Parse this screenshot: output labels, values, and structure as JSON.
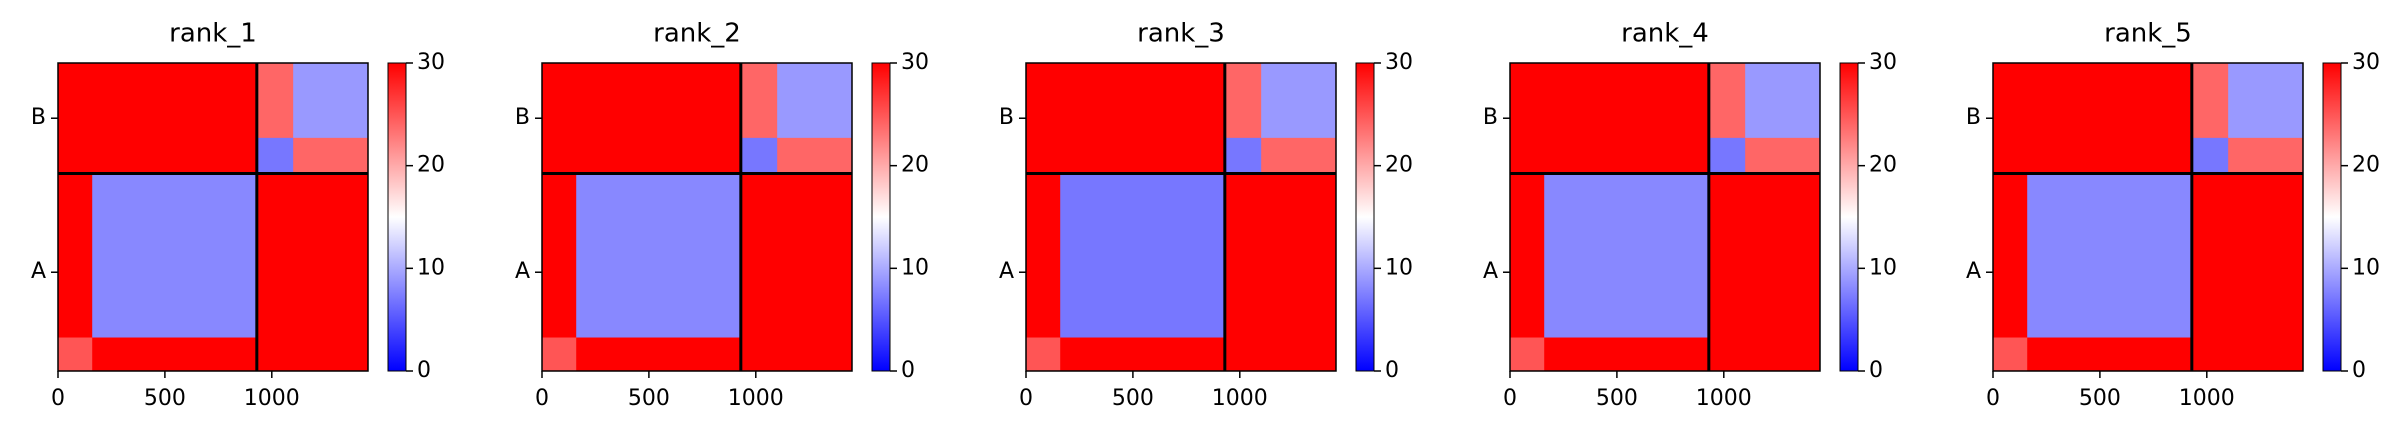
{
  "chart_data": [
    {
      "type": "heatmap",
      "title": "rank_1",
      "colormap": "bwr",
      "edges": [
        0,
        160,
        930,
        1100,
        1450
      ],
      "z": [
        [
          25,
          30,
          30,
          30
        ],
        [
          30,
          8,
          30,
          30
        ],
        [
          30,
          30,
          7,
          24
        ],
        [
          30,
          30,
          24,
          9
        ]
      ],
      "xlim": [
        0,
        1450
      ],
      "ylim": [
        1450,
        0
      ],
      "xticks": [
        0,
        500,
        1000
      ],
      "yticks": [
        {
          "value": 465,
          "label": "A"
        },
        {
          "value": 1190,
          "label": "B"
        }
      ],
      "chain_breaks": [
        930
      ],
      "clim": [
        0,
        30
      ],
      "cticks": [
        0,
        10,
        20,
        30
      ]
    },
    {
      "type": "heatmap",
      "title": "rank_2",
      "colormap": "bwr",
      "edges": [
        0,
        160,
        930,
        1100,
        1450
      ],
      "z": [
        [
          25,
          30,
          30,
          30
        ],
        [
          30,
          8,
          30,
          30
        ],
        [
          30,
          30,
          7,
          24
        ],
        [
          30,
          30,
          24,
          9
        ]
      ],
      "xlim": [
        0,
        1450
      ],
      "ylim": [
        1450,
        0
      ],
      "xticks": [
        0,
        500,
        1000
      ],
      "yticks": [
        {
          "value": 465,
          "label": "A"
        },
        {
          "value": 1190,
          "label": "B"
        }
      ],
      "chain_breaks": [
        930
      ],
      "clim": [
        0,
        30
      ],
      "cticks": [
        0,
        10,
        20,
        30
      ]
    },
    {
      "type": "heatmap",
      "title": "rank_3",
      "colormap": "bwr",
      "edges": [
        0,
        160,
        930,
        1100,
        1450
      ],
      "z": [
        [
          25,
          30,
          30,
          30
        ],
        [
          30,
          7,
          30,
          30
        ],
        [
          30,
          30,
          7,
          24
        ],
        [
          30,
          30,
          24,
          9
        ]
      ],
      "xlim": [
        0,
        1450
      ],
      "ylim": [
        1450,
        0
      ],
      "xticks": [
        0,
        500,
        1000
      ],
      "yticks": [
        {
          "value": 465,
          "label": "A"
        },
        {
          "value": 1190,
          "label": "B"
        }
      ],
      "chain_breaks": [
        930
      ],
      "clim": [
        0,
        30
      ],
      "cticks": [
        0,
        10,
        20,
        30
      ]
    },
    {
      "type": "heatmap",
      "title": "rank_4",
      "colormap": "bwr",
      "edges": [
        0,
        160,
        930,
        1100,
        1450
      ],
      "z": [
        [
          25,
          30,
          30,
          30
        ],
        [
          30,
          8,
          30,
          30
        ],
        [
          30,
          30,
          7,
          24
        ],
        [
          30,
          30,
          24,
          9
        ]
      ],
      "xlim": [
        0,
        1450
      ],
      "ylim": [
        1450,
        0
      ],
      "xticks": [
        0,
        500,
        1000
      ],
      "yticks": [
        {
          "value": 465,
          "label": "A"
        },
        {
          "value": 1190,
          "label": "B"
        }
      ],
      "chain_breaks": [
        930
      ],
      "clim": [
        0,
        30
      ],
      "cticks": [
        0,
        10,
        20,
        30
      ]
    },
    {
      "type": "heatmap",
      "title": "rank_5",
      "colormap": "bwr",
      "edges": [
        0,
        160,
        930,
        1100,
        1450
      ],
      "z": [
        [
          25,
          30,
          30,
          30
        ],
        [
          30,
          8,
          30,
          30
        ],
        [
          30,
          30,
          7,
          24
        ],
        [
          30,
          30,
          24,
          9
        ]
      ],
      "xlim": [
        0,
        1450
      ],
      "ylim": [
        1450,
        0
      ],
      "xticks": [
        0,
        500,
        1000
      ],
      "yticks": [
        {
          "value": 465,
          "label": "A"
        },
        {
          "value": 1190,
          "label": "B"
        }
      ],
      "chain_breaks": [
        930
      ],
      "clim": [
        0,
        30
      ],
      "cticks": [
        0,
        10,
        20,
        30
      ]
    }
  ]
}
